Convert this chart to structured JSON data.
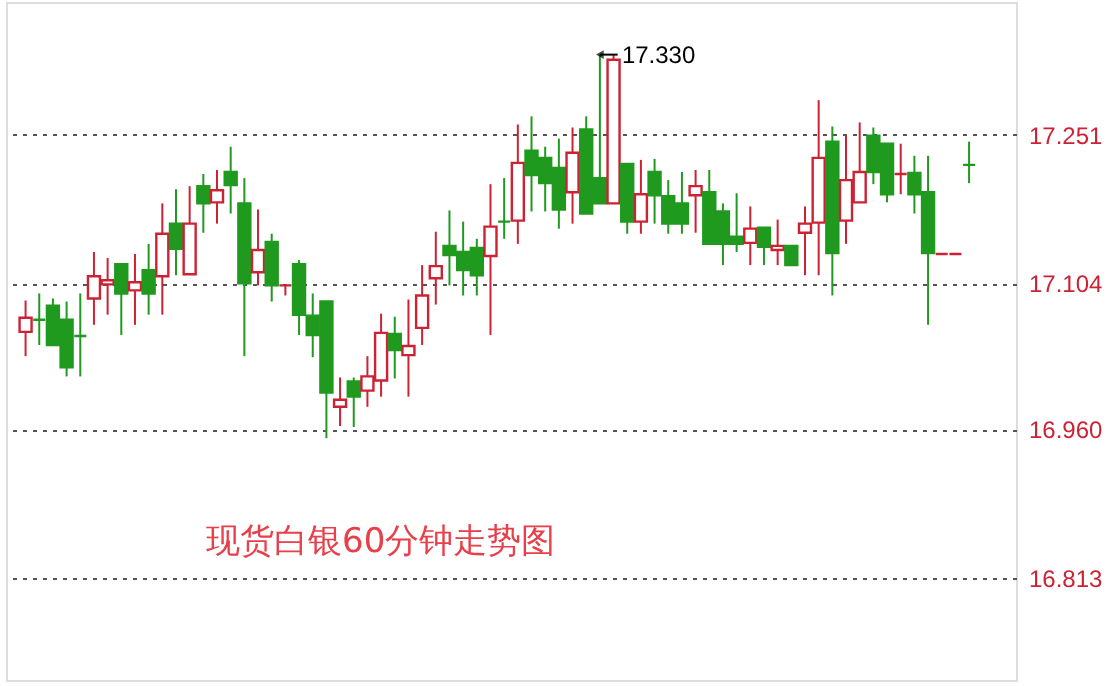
{
  "chart_data": {
    "type": "candlestick",
    "categories": [
      null,
      null,
      null,
      null,
      null,
      null,
      null,
      null,
      null,
      null,
      null,
      null,
      null,
      null,
      null,
      null,
      null,
      null,
      null,
      null,
      null,
      null,
      null,
      null,
      null,
      null,
      null,
      null,
      null,
      null,
      null,
      null,
      null,
      null,
      null,
      null,
      null,
      null,
      null,
      null,
      null,
      null,
      null,
      null,
      null,
      null,
      null,
      null,
      null,
      null,
      null,
      null,
      null,
      null,
      null,
      null,
      null,
      null,
      null,
      null,
      null,
      null,
      null,
      null,
      null,
      null,
      null,
      null,
      null,
      null
    ],
    "ohlc": [
      [
        17.056,
        17.087,
        17.032,
        17.07
      ],
      [
        17.068,
        17.094,
        17.043,
        17.068
      ],
      [
        17.082,
        17.089,
        17.043,
        17.043
      ],
      [
        17.068,
        17.086,
        17.012,
        17.021
      ],
      [
        17.052,
        17.094,
        17.012,
        17.052
      ],
      [
        17.089,
        17.135,
        17.063,
        17.111
      ],
      [
        17.103,
        17.129,
        17.073,
        17.107
      ],
      [
        17.123,
        17.123,
        17.053,
        17.094
      ],
      [
        17.097,
        17.133,
        17.063,
        17.105
      ],
      [
        17.117,
        17.143,
        17.073,
        17.094
      ],
      [
        17.111,
        17.183,
        17.073,
        17.153
      ],
      [
        17.163,
        17.197,
        17.112,
        17.138
      ],
      [
        17.113,
        17.2,
        17.113,
        17.163
      ],
      [
        17.2,
        17.212,
        17.154,
        17.183
      ],
      [
        17.184,
        17.216,
        17.163,
        17.196
      ],
      [
        17.214,
        17.239,
        17.173,
        17.201
      ],
      [
        17.183,
        17.208,
        17.032,
        17.104
      ],
      [
        17.115,
        17.177,
        17.102,
        17.137
      ],
      [
        17.145,
        17.153,
        17.086,
        17.102
      ],
      [
        17.102,
        17.102,
        17.092,
        17.102
      ],
      [
        17.123,
        17.127,
        17.053,
        17.073
      ],
      [
        17.072,
        17.094,
        17.031,
        17.053
      ],
      [
        17.086,
        17.086,
        16.951,
        16.996
      ],
      [
        16.982,
        17.011,
        16.963,
        16.989
      ],
      [
        17.007,
        17.011,
        16.962,
        16.992
      ],
      [
        16.998,
        17.032,
        16.982,
        17.012
      ],
      [
        17.008,
        17.074,
        16.992,
        17.055
      ],
      [
        17.054,
        17.071,
        17.01,
        17.038
      ],
      [
        17.033,
        17.088,
        16.992,
        17.042
      ],
      [
        17.06,
        17.122,
        17.043,
        17.092
      ],
      [
        17.109,
        17.155,
        17.083,
        17.121
      ],
      [
        17.141,
        17.176,
        17.102,
        17.132
      ],
      [
        17.135,
        17.165,
        17.092,
        17.117
      ],
      [
        17.139,
        17.148,
        17.092,
        17.112
      ],
      [
        17.131,
        17.202,
        17.053,
        17.16
      ],
      [
        17.165,
        17.208,
        17.148,
        17.165
      ],
      [
        17.166,
        17.261,
        17.143,
        17.223
      ],
      [
        17.235,
        17.269,
        17.175,
        17.211
      ],
      [
        17.228,
        17.239,
        17.175,
        17.203
      ],
      [
        17.218,
        17.247,
        17.158,
        17.177
      ],
      [
        17.194,
        17.258,
        17.163,
        17.233
      ],
      [
        17.256,
        17.269,
        17.173,
        17.173
      ],
      [
        17.208,
        17.33,
        17.183,
        17.183
      ],
      [
        17.183,
        17.33,
        17.183,
        17.325
      ],
      [
        17.222,
        17.222,
        17.153,
        17.165
      ],
      [
        17.165,
        17.226,
        17.153,
        17.192
      ],
      [
        17.214,
        17.227,
        17.163,
        17.191
      ],
      [
        17.19,
        17.206,
        17.153,
        17.163
      ],
      [
        17.183,
        17.214,
        17.153,
        17.163
      ],
      [
        17.191,
        17.216,
        17.154,
        17.2
      ],
      [
        17.194,
        17.216,
        17.143,
        17.143
      ],
      [
        17.175,
        17.183,
        17.122,
        17.143
      ],
      [
        17.15,
        17.193,
        17.135,
        17.143
      ],
      [
        17.144,
        17.18,
        17.122,
        17.158
      ],
      [
        17.159,
        17.159,
        17.122,
        17.14
      ],
      [
        17.137,
        17.167,
        17.122,
        17.141
      ],
      [
        17.141,
        17.141,
        17.122,
        17.122
      ],
      [
        17.154,
        17.18,
        17.112,
        17.163
      ],
      [
        17.164,
        17.285,
        17.112,
        17.228
      ],
      [
        17.244,
        17.259,
        17.092,
        17.134
      ],
      [
        17.166,
        17.25,
        17.143,
        17.206
      ],
      [
        17.184,
        17.263,
        17.184,
        17.214
      ],
      [
        17.25,
        17.258,
        17.202,
        17.214
      ],
      [
        17.242,
        17.242,
        17.184,
        17.192
      ],
      [
        17.212,
        17.242,
        17.192,
        17.212
      ],
      [
        17.213,
        17.23,
        17.173,
        17.192
      ],
      [
        17.194,
        17.23,
        17.063,
        17.134
      ],
      [
        17.133,
        17.133,
        17.133,
        17.133
      ],
      [
        17.133,
        17.133,
        17.133,
        17.133
      ],
      [
        17.221,
        17.244,
        17.203,
        17.221
      ]
    ],
    "colors": [
      "#cc2233",
      "#1f9a1f",
      "#1f9a1f",
      "#1f9a1f",
      "#1f9a1f",
      "#cc2233",
      "#cc2233",
      "#1f9a1f",
      "#cc2233",
      "#1f9a1f",
      "#cc2233",
      "#1f9a1f",
      "#cc2233",
      "#1f9a1f",
      "#cc2233",
      "#1f9a1f",
      "#1f9a1f",
      "#cc2233",
      "#1f9a1f",
      "#cc2233",
      "#1f9a1f",
      "#1f9a1f",
      "#1f9a1f",
      "#cc2233",
      "#1f9a1f",
      "#cc2233",
      "#cc2233",
      "#1f9a1f",
      "#cc2233",
      "#cc2233",
      "#cc2233",
      "#1f9a1f",
      "#1f9a1f",
      "#1f9a1f",
      "#cc2233",
      "#1f9a1f",
      "#cc2233",
      "#1f9a1f",
      "#1f9a1f",
      "#1f9a1f",
      "#cc2233",
      "#1f9a1f",
      "#1f9a1f",
      "#cc2233",
      "#1f9a1f",
      "#cc2233",
      "#1f9a1f",
      "#1f9a1f",
      "#1f9a1f",
      "#cc2233",
      "#1f9a1f",
      "#1f9a1f",
      "#1f9a1f",
      "#cc2233",
      "#1f9a1f",
      "#cc2233",
      "#1f9a1f",
      "#cc2233",
      "#cc2233",
      "#1f9a1f",
      "#cc2233",
      "#cc2233",
      "#1f9a1f",
      "#1f9a1f",
      "#cc2233",
      "#1f9a1f",
      "#1f9a1f",
      "#cc2233",
      "#cc2233",
      "#1f9a1f"
    ],
    "ylim": [
      16.712,
      17.382
    ],
    "yticks": [
      17.251,
      17.104,
      {
        "value": 16.96,
        "label": "16.960"
      },
      16.813
    ],
    "grid": true,
    "annotations": [
      "17.330",
      "现货白银60分钟走势图"
    ]
  }
}
